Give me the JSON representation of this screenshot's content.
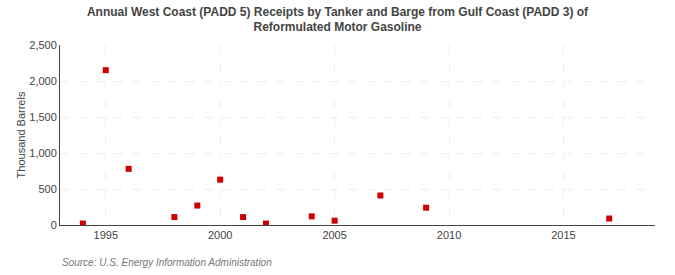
{
  "chart_data": {
    "type": "scatter",
    "title": "Annual West Coast (PADD 5) Receipts by Tanker and Barge from Gulf Coast (PADD 3) of\nReformulated Motor Gasoline",
    "ylabel": "Thousand Barrels",
    "source": "Source: U.S. Energy Information Administration",
    "x": [
      1994,
      1995,
      1996,
      1998,
      1999,
      2000,
      2001,
      2002,
      2004,
      2005,
      2007,
      2009,
      2017
    ],
    "values": [
      20,
      2150,
      780,
      110,
      270,
      630,
      110,
      20,
      120,
      60,
      410,
      240,
      90
    ],
    "color": "#cc0000",
    "marker": "square",
    "xlim": [
      1993,
      2019
    ],
    "xticks": [
      1995,
      2000,
      2005,
      2010,
      2015
    ],
    "ylim": [
      0,
      2500
    ],
    "yticks": [
      0,
      500,
      {
        "value": 1000,
        "label": "1,000"
      },
      {
        "value": 1500,
        "label": "1,500"
      },
      {
        "value": 2000,
        "label": "2,000"
      },
      {
        "value": 2500,
        "label": "2,500"
      }
    ],
    "grid": true
  }
}
